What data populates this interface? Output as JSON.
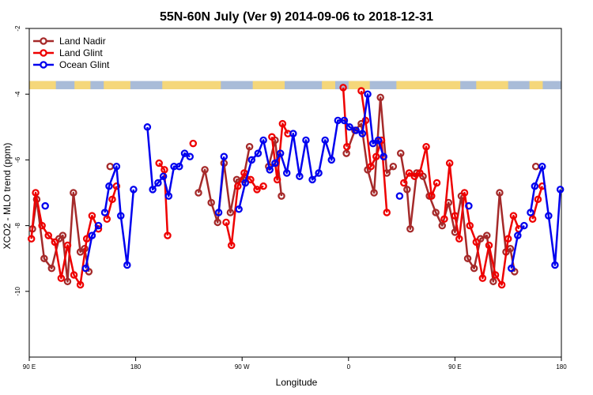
{
  "chart_data": {
    "type": "line",
    "title": "55N-60N July (Ver 9)   2014-09-06 to 2018-12-31",
    "xlabel": "Longitude",
    "ylabel": "XCO2 - MLO trend (ppm)",
    "xlim": [
      0,
      1
    ],
    "ylim": [
      -12,
      -2
    ],
    "x_ticks": [
      {
        "value": 0,
        "label": "90 E"
      },
      {
        "value": 0.2,
        "label": "180"
      },
      {
        "value": 0.4,
        "label": "90 W"
      },
      {
        "value": 0.6,
        "label": "0"
      },
      {
        "value": 0.8,
        "label": "90 E"
      },
      {
        "value": 1,
        "label": "180"
      }
    ],
    "y_ticks": [
      {
        "value": -2,
        "label": "-2"
      },
      {
        "value": -4,
        "label": "-4"
      },
      {
        "value": -6,
        "label": "-6"
      },
      {
        "value": -8,
        "label": "-8"
      },
      {
        "value": -10,
        "label": "-10"
      }
    ],
    "grid": false,
    "legend_position": "top-left",
    "land_ocean_strip": {
      "y_range": [
        -3.85,
        -3.6
      ],
      "land_color": "#f5d77a",
      "ocean_color": "#a9bcd8"
    },
    "series": [
      {
        "name": "Land Nadir",
        "color": "#a52a2a",
        "segments": [
          [
            [
              0.006,
              -8.1
            ],
            [
              0.014,
              -7.2
            ],
            [
              0.028,
              -9.0
            ],
            [
              0.042,
              -9.3
            ],
            [
              0.056,
              -8.4
            ],
            [
              0.063,
              -8.3
            ],
            [
              0.072,
              -9.7
            ],
            [
              0.083,
              -7.0
            ],
            [
              0.096,
              -8.8
            ],
            [
              0.104,
              -8.7
            ],
            [
              0.112,
              -9.4
            ]
          ],
          [
            [
              0.152,
              -6.2
            ]
          ],
          [
            [
              0.318,
              -7.0
            ],
            [
              0.33,
              -6.3
            ],
            [
              0.342,
              -7.3
            ],
            [
              0.354,
              -7.9
            ],
            [
              0.366,
              -6.1
            ],
            [
              0.378,
              -7.6
            ],
            [
              0.39,
              -6.6
            ],
            [
              0.402,
              -6.6
            ],
            [
              0.414,
              -5.6
            ]
          ],
          [
            [
              0.45,
              -6.2
            ],
            [
              0.462,
              -5.4
            ],
            [
              0.474,
              -7.1
            ]
          ],
          [
            [
              0.596,
              -5.8
            ],
            [
              0.612,
              -5.1
            ],
            [
              0.624,
              -4.9
            ],
            [
              0.636,
              -6.3
            ],
            [
              0.648,
              -7.0
            ],
            [
              0.66,
              -4.1
            ],
            [
              0.672,
              -6.4
            ],
            [
              0.684,
              -6.2
            ]
          ],
          [
            [
              0.698,
              -5.8
            ],
            [
              0.71,
              -6.9
            ],
            [
              0.716,
              -8.1
            ],
            [
              0.728,
              -6.4
            ],
            [
              0.74,
              -6.5
            ],
            [
              0.752,
              -7.1
            ],
            [
              0.764,
              -7.6
            ],
            [
              0.776,
              -8.0
            ],
            [
              0.788,
              -7.3
            ],
            [
              0.8,
              -8.2
            ],
            [
              0.812,
              -7.1
            ],
            [
              0.824,
              -9.0
            ],
            [
              0.836,
              -9.3
            ],
            [
              0.848,
              -8.4
            ],
            [
              0.86,
              -8.3
            ],
            [
              0.872,
              -9.7
            ],
            [
              0.884,
              -7.0
            ],
            [
              0.896,
              -8.8
            ],
            [
              0.904,
              -8.7
            ],
            [
              0.912,
              -9.4
            ]
          ],
          [
            [
              0.952,
              -6.2
            ]
          ]
        ]
      },
      {
        "name": "Land Glint",
        "color": "#ee0000",
        "segments": [
          [
            [
              0.004,
              -8.4
            ],
            [
              0.012,
              -7.0
            ],
            [
              0.024,
              -8.0
            ],
            [
              0.036,
              -8.3
            ],
            [
              0.048,
              -8.5
            ],
            [
              0.06,
              -9.6
            ],
            [
              0.072,
              -8.6
            ],
            [
              0.084,
              -9.5
            ],
            [
              0.096,
              -9.8
            ],
            [
              0.108,
              -8.4
            ],
            [
              0.118,
              -7.7
            ],
            [
              0.13,
              -8.1
            ]
          ],
          [
            [
              0.146,
              -7.8
            ],
            [
              0.156,
              -7.2
            ],
            [
              0.164,
              -6.8
            ]
          ],
          [
            [
              0.244,
              -6.1
            ],
            [
              0.254,
              -6.3
            ],
            [
              0.26,
              -8.3
            ]
          ],
          [
            [
              0.308,
              -5.5
            ]
          ],
          [
            [
              0.37,
              -7.9
            ],
            [
              0.38,
              -8.6
            ],
            [
              0.392,
              -6.8
            ],
            [
              0.404,
              -6.4
            ],
            [
              0.416,
              -6.6
            ],
            [
              0.428,
              -6.9
            ],
            [
              0.44,
              -6.8
            ]
          ],
          [
            [
              0.456,
              -5.3
            ],
            [
              0.466,
              -6.6
            ],
            [
              0.476,
              -4.9
            ],
            [
              0.486,
              -5.2
            ]
          ],
          [
            [
              0.59,
              -3.8
            ],
            [
              0.597,
              -5.6
            ]
          ],
          [
            [
              0.624,
              -3.9
            ],
            [
              0.632,
              -4.8
            ],
            [
              0.642,
              -6.2
            ],
            [
              0.652,
              -5.9
            ],
            [
              0.662,
              -5.4
            ],
            [
              0.672,
              -7.6
            ]
          ],
          [
            [
              0.704,
              -6.7
            ],
            [
              0.714,
              -6.4
            ],
            [
              0.724,
              -6.5
            ],
            [
              0.734,
              -6.4
            ],
            [
              0.746,
              -5.6
            ],
            [
              0.756,
              -7.1
            ],
            [
              0.766,
              -6.7
            ]
          ],
          [
            [
              0.78,
              -7.8
            ],
            [
              0.79,
              -6.1
            ],
            [
              0.8,
              -7.7
            ],
            [
              0.808,
              -8.4
            ],
            [
              0.818,
              -7.0
            ],
            [
              0.828,
              -8.0
            ],
            [
              0.84,
              -8.5
            ],
            [
              0.852,
              -9.6
            ],
            [
              0.864,
              -8.6
            ],
            [
              0.876,
              -9.5
            ],
            [
              0.888,
              -9.8
            ],
            [
              0.9,
              -8.4
            ],
            [
              0.91,
              -7.7
            ],
            [
              0.92,
              -8.1
            ]
          ],
          [
            [
              0.946,
              -7.8
            ],
            [
              0.956,
              -7.2
            ],
            [
              0.964,
              -6.8
            ]
          ]
        ]
      },
      {
        "name": "Ocean Glint",
        "color": "#0000ee",
        "segments": [
          [
            [
              0.03,
              -7.4
            ]
          ],
          [
            [
              0.106,
              -9.3
            ],
            [
              0.118,
              -8.3
            ],
            [
              0.13,
              -8.0
            ]
          ],
          [
            [
              0.142,
              -7.6
            ],
            [
              0.15,
              -6.8
            ],
            [
              0.164,
              -6.2
            ],
            [
              0.172,
              -7.7
            ],
            [
              0.184,
              -9.2
            ],
            [
              0.196,
              -6.9
            ]
          ],
          [
            [
              0.222,
              -5.0
            ],
            [
              0.232,
              -6.9
            ],
            [
              0.242,
              -6.7
            ],
            [
              0.252,
              -6.5
            ],
            [
              0.262,
              -7.1
            ],
            [
              0.272,
              -6.2
            ],
            [
              0.282,
              -6.2
            ],
            [
              0.292,
              -5.8
            ],
            [
              0.302,
              -5.9
            ]
          ],
          [
            [
              0.356,
              -7.6
            ],
            [
              0.366,
              -5.9
            ]
          ],
          [
            [
              0.394,
              -7.5
            ],
            [
              0.406,
              -6.7
            ],
            [
              0.418,
              -6.0
            ],
            [
              0.43,
              -5.8
            ],
            [
              0.44,
              -5.4
            ],
            [
              0.452,
              -6.3
            ],
            [
              0.462,
              -6.1
            ],
            [
              0.472,
              -5.8
            ],
            [
              0.484,
              -6.4
            ],
            [
              0.496,
              -5.2
            ],
            [
              0.508,
              -6.5
            ],
            [
              0.52,
              -5.4
            ],
            [
              0.532,
              -6.6
            ],
            [
              0.544,
              -6.4
            ],
            [
              0.556,
              -5.4
            ],
            [
              0.568,
              -6.0
            ],
            [
              0.58,
              -4.8
            ],
            [
              0.592,
              -4.8
            ],
            [
              0.602,
              -5.0
            ],
            [
              0.614,
              -5.1
            ],
            [
              0.626,
              -5.2
            ],
            [
              0.636,
              -4.0
            ],
            [
              0.646,
              -5.5
            ],
            [
              0.656,
              -5.4
            ],
            [
              0.666,
              -5.9
            ]
          ],
          [
            [
              0.696,
              -7.1
            ]
          ],
          [
            [
              0.826,
              -7.4
            ]
          ],
          [
            [
              0.906,
              -9.3
            ],
            [
              0.918,
              -8.3
            ],
            [
              0.93,
              -8.0
            ]
          ],
          [
            [
              0.942,
              -7.6
            ],
            [
              0.95,
              -6.8
            ],
            [
              0.964,
              -6.2
            ],
            [
              0.976,
              -7.7
            ],
            [
              0.988,
              -9.2
            ],
            [
              0.998,
              -6.9
            ]
          ]
        ]
      }
    ]
  }
}
